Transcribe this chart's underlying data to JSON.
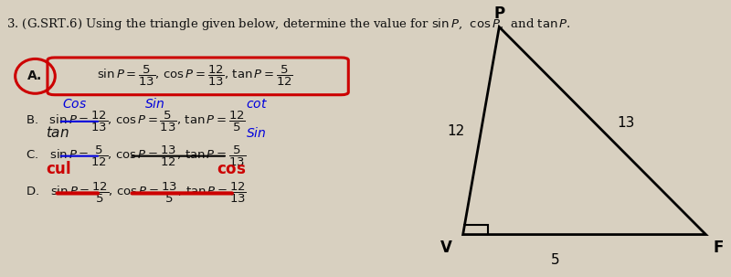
{
  "bg_color": "#d8d0c0",
  "text_color": "#111111",
  "highlight_box_color": "#cc0000",
  "annotation_blue": "#0000dd",
  "annotation_red": "#cc0000",
  "title": "3. (G.SRT.6) Using the triangle given below, determine the value for $\\sin P$, $\\cos P$, and $\\tan P$.",
  "opt_A": "$\\sin P = \\dfrac{5}{13}$, $\\cos P = \\dfrac{12}{13}$, $\\tan P = \\dfrac{5}{12}$",
  "opt_B": "B.   $\\sin P = \\dfrac{12}{13}$, $\\cos P = \\dfrac{5}{13}$, $\\tan P = \\dfrac{12}{5}$",
  "opt_C": "C.   $\\sin P = \\dfrac{5}{12}$, $\\cos P = \\dfrac{13}{12}$, $\\tan P = \\dfrac{5}{13}$",
  "opt_D": "D.   $\\sin P = \\dfrac{12}{5}$, $\\cos P = \\dfrac{13}{5}$, $\\tan P = \\dfrac{12}{13}$",
  "ann_cos5": "Cos",
  "ann_sin_b": "Sin",
  "ann_cot": "cot",
  "ann_tan": "tan",
  "ann_sin_c": "Sin",
  "ann_cul": "cul",
  "ann_cos_d": "cos",
  "tri_P": [
    0.685,
    0.93
  ],
  "tri_V": [
    0.635,
    0.15
  ],
  "tri_F": [
    0.97,
    0.15
  ],
  "sq_size": 0.035,
  "label_P": "P",
  "label_V": "V",
  "label_F": "F",
  "side_PV": "12",
  "side_PF": "13",
  "side_VF": "5"
}
